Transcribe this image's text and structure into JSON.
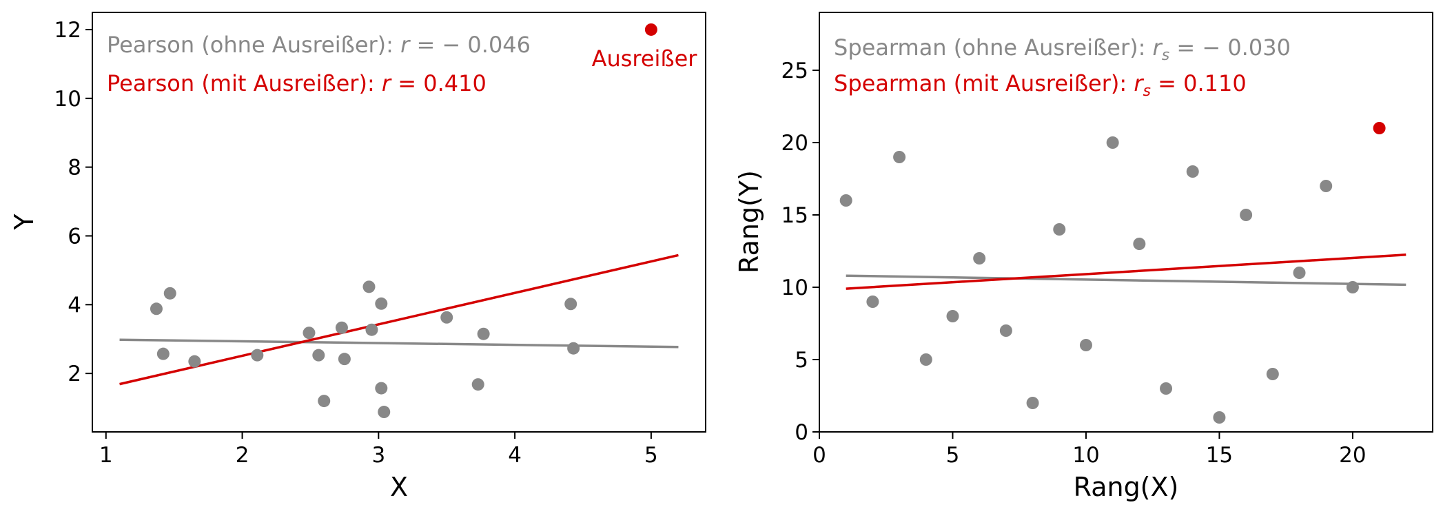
{
  "chart_data": [
    {
      "type": "scatter",
      "xlabel": "X",
      "ylabel": "Y",
      "xlim": [
        0.9,
        5.4
      ],
      "ylim": [
        0.3,
        12.5
      ],
      "xticks": [
        "1",
        "2",
        "3",
        "4",
        "5"
      ],
      "yticks": [
        "2",
        "4",
        "6",
        "8",
        "10",
        "12"
      ],
      "grid": false,
      "colors": {
        "normal": "#888888",
        "outlier": "#d40000"
      },
      "annotations": {
        "without_prefix": "Pearson (ohne Ausreißer): ",
        "without_var": "r",
        "without_value": " = − 0.046",
        "with_prefix": "Pearson (mit Ausreißer): ",
        "with_var": "r",
        "with_value": " = 0.410",
        "outlier_label": "Ausreißer"
      },
      "points": [
        [
          1.37,
          3.88
        ],
        [
          1.42,
          2.57
        ],
        [
          1.47,
          4.33
        ],
        [
          1.65,
          2.35
        ],
        [
          2.11,
          2.53
        ],
        [
          2.49,
          3.18
        ],
        [
          2.56,
          2.53
        ],
        [
          2.6,
          1.2
        ],
        [
          2.73,
          3.33
        ],
        [
          2.75,
          2.42
        ],
        [
          2.93,
          4.52
        ],
        [
          2.95,
          3.27
        ],
        [
          3.02,
          4.03
        ],
        [
          3.02,
          1.57
        ],
        [
          3.04,
          0.88
        ],
        [
          3.5,
          3.63
        ],
        [
          3.73,
          1.68
        ],
        [
          3.77,
          3.15
        ],
        [
          4.41,
          4.02
        ],
        [
          4.43,
          2.73
        ]
      ],
      "outlier": [
        5.0,
        12.0
      ],
      "fit_without": {
        "x": [
          1.1,
          5.2
        ],
        "y": [
          2.98,
          2.77
        ]
      },
      "fit_with": {
        "x": [
          1.1,
          5.2
        ],
        "y": [
          1.69,
          5.44
        ]
      }
    },
    {
      "type": "scatter",
      "xlabel": "Rang(X)",
      "ylabel": "Rang(Y)",
      "xlim": [
        0,
        23
      ],
      "ylim": [
        0,
        29
      ],
      "xticks": [
        "0",
        "5",
        "10",
        "15",
        "20"
      ],
      "yticks": [
        "0",
        "5",
        "10",
        "15",
        "20",
        "25"
      ],
      "grid": false,
      "colors": {
        "normal": "#888888",
        "outlier": "#d40000"
      },
      "annotations": {
        "without_prefix": "Spearman (ohne Ausreißer): ",
        "without_var": "r",
        "without_sub": "s",
        "without_value": " = − 0.030",
        "with_prefix": "Spearman (mit Ausreißer): ",
        "with_var": "r",
        "with_sub": "s",
        "with_value": " = 0.110"
      },
      "points": [
        [
          1,
          16
        ],
        [
          2,
          9
        ],
        [
          3,
          19
        ],
        [
          4,
          5
        ],
        [
          5,
          8
        ],
        [
          6,
          12
        ],
        [
          7,
          7
        ],
        [
          8,
          2
        ],
        [
          9,
          14
        ],
        [
          10,
          6
        ],
        [
          11,
          20
        ],
        [
          12,
          13
        ],
        [
          13,
          3
        ],
        [
          14,
          18
        ],
        [
          15,
          1
        ],
        [
          16,
          15
        ],
        [
          17,
          4
        ],
        [
          18,
          11
        ],
        [
          19,
          17
        ],
        [
          20,
          10
        ]
      ],
      "outlier": [
        21,
        21
      ],
      "fit_without": {
        "x": [
          1,
          22
        ],
        "y": [
          10.8,
          10.17
        ]
      },
      "fit_with": {
        "x": [
          1,
          22
        ],
        "y": [
          9.9,
          12.25
        ]
      }
    }
  ]
}
